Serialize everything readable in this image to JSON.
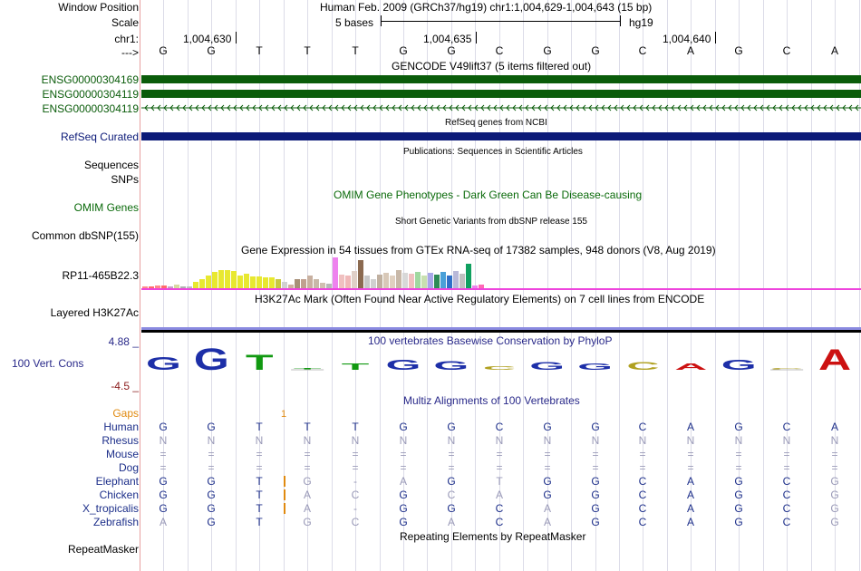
{
  "header": {
    "window_position_label": "Window Position",
    "window_position_value": "Human Feb. 2009 (GRCh37/hg19)   chr1:1,004,629-1,004,643 (15 bp)",
    "scale_label": "Scale",
    "scale_value": "5 bases",
    "assembly": "hg19",
    "chrom_label": "chr1:",
    "arrow_label": "--->",
    "ticks": [
      "1,004,630",
      "1,004,635",
      "1,004,640"
    ]
  },
  "sequence": [
    "G",
    "G",
    "T",
    "T",
    "T",
    "G",
    "G",
    "C",
    "G",
    "G",
    "C",
    "A",
    "G",
    "C",
    "A"
  ],
  "gencode": {
    "title": "GENCODE V49lift37 (5 items filtered out)",
    "tracks": [
      "ENSG00000304169",
      "ENSG00000304119",
      "ENSG00000304119"
    ],
    "color": "#0a5c0a"
  },
  "refseq": {
    "title": "RefSeq genes from NCBI",
    "label": "RefSeq Curated",
    "color": "#0c1a78"
  },
  "publications": {
    "title": "Publications: Sequences in Scientific Articles",
    "labels": [
      "Sequences",
      "SNPs"
    ]
  },
  "omim": {
    "title": "OMIM Gene Phenotypes - Dark Green Can Be Disease-causing",
    "label": "OMIM Genes"
  },
  "dbsnp": {
    "title": "Short Genetic Variants from dbSNP release 155",
    "label": "Common dbSNP(155)"
  },
  "gtex": {
    "title": "Gene Expression in 54 tissues from GTEx RNA-seq of 17382 samples, 948 donors (V8, Aug 2019)",
    "label": "RP11-465B22.3",
    "values": [
      0.05,
      0.06,
      0.1,
      0.08,
      0.06,
      0.12,
      0.05,
      0.06,
      0.22,
      0.28,
      0.4,
      0.52,
      0.6,
      0.6,
      0.55,
      0.4,
      0.48,
      0.38,
      0.38,
      0.35,
      0.36,
      0.3,
      0.2,
      0.12,
      0.28,
      0.3,
      0.4,
      0.28,
      0.18,
      0.14,
      1.0,
      0.45,
      0.4,
      0.55,
      0.9,
      0.4,
      0.28,
      0.45,
      0.5,
      0.42,
      0.6,
      0.5,
      0.48,
      0.52,
      0.42,
      0.5,
      0.45,
      0.52,
      0.4,
      0.55,
      0.48,
      0.78,
      0.1,
      0.12
    ],
    "colors": [
      "#ff8a8a",
      "#ff6b6b",
      "#ff8a8a",
      "#ff6b6b",
      "#c8a0c8",
      "#d8d8a0",
      "#b0b0b0",
      "#c0c0c0",
      "#e8e830",
      "#e8e830",
      "#e8e830",
      "#e8e830",
      "#e8e830",
      "#e8e830",
      "#e8e830",
      "#e8e830",
      "#e8e830",
      "#e8e830",
      "#e8e830",
      "#e8e830",
      "#e8e830",
      "#c8c840",
      "#d0d0d0",
      "#d0b0a0",
      "#a89078",
      "#c0a090",
      "#c8b0a0",
      "#c8b8a8",
      "#d0c0b0",
      "#b8b8b8",
      "#ee82ee",
      "#f0c0c0",
      "#f0b8b8",
      "#e0d0c8",
      "#8b6a50",
      "#c8c8c8",
      "#d0d0d0",
      "#c0b0a0",
      "#d8c8b8",
      "#e0d0c0",
      "#c8b8a8",
      "#d8d8d8",
      "#f0c0c0",
      "#a0d8a0",
      "#c8e0b0",
      "#a8a8e8",
      "#2e8b57",
      "#4aa0d8",
      "#3070c8",
      "#b8b8d8",
      "#c0c0c0",
      "#10a060",
      "#ee82ee",
      "#ff69b4"
    ]
  },
  "h3k27ac": {
    "title": "H3K27Ac Mark (Often Found Near Active Regulatory Elements) on 7 cell lines from ENCODE",
    "label": "Layered H3K27Ac"
  },
  "phylop": {
    "title": "100 vertebrates Basewise Conservation by PhyloP",
    "label": "100 Vert. Cons",
    "max_label": "4.88 _",
    "min_label": "-4.5 _",
    "values": [
      0.6,
      1.0,
      0.7,
      0.0,
      0.3,
      0.45,
      0.4,
      0.15,
      0.35,
      0.3,
      0.35,
      0.3,
      0.45,
      0.0,
      0.95
    ]
  },
  "multiz": {
    "title": "Multiz Alignments of 100 Vertebrates",
    "gaps_label": "Gaps",
    "gap_marker": "1",
    "species": [
      {
        "name": "Human",
        "bases": [
          "G",
          "G",
          "T",
          "T",
          "T",
          "G",
          "G",
          "C",
          "G",
          "G",
          "C",
          "A",
          "G",
          "C",
          "A"
        ]
      },
      {
        "name": "Rhesus",
        "bases": [
          "N",
          "N",
          "N",
          "N",
          "N",
          "N",
          "N",
          "N",
          "N",
          "N",
          "N",
          "N",
          "N",
          "N",
          "N"
        ]
      },
      {
        "name": "Mouse",
        "bases": [
          "=",
          "=",
          "=",
          "=",
          "=",
          "=",
          "=",
          "=",
          "=",
          "=",
          "=",
          "=",
          "=",
          "=",
          "="
        ]
      },
      {
        "name": "Dog",
        "bases": [
          "=",
          "=",
          "=",
          "=",
          "=",
          "=",
          "=",
          "=",
          "=",
          "=",
          "=",
          "=",
          "=",
          "=",
          "="
        ]
      },
      {
        "name": "Elephant",
        "bases": [
          "G",
          "G",
          "T",
          "G",
          "-",
          "A",
          "G",
          "T",
          "G",
          "G",
          "C",
          "A",
          "G",
          "C",
          "G"
        ]
      },
      {
        "name": "Chicken",
        "bases": [
          "G",
          "G",
          "T",
          "A",
          "C",
          "G",
          "C",
          "A",
          "G",
          "G",
          "C",
          "A",
          "G",
          "C",
          "G"
        ]
      },
      {
        "name": "X_tropicalis",
        "bases": [
          "G",
          "G",
          "T",
          "A",
          "-",
          "G",
          "G",
          "C",
          "A",
          "G",
          "C",
          "A",
          "G",
          "C",
          "G"
        ]
      },
      {
        "name": "Zebrafish",
        "bases": [
          "A",
          "G",
          "T",
          "G",
          "C",
          "G",
          "A",
          "C",
          "A",
          "G",
          "C",
          "A",
          "G",
          "C",
          "G"
        ]
      }
    ]
  },
  "repeatmasker": {
    "title": "Repeating Elements by RepeatMasker",
    "label": "RepeatMasker"
  }
}
